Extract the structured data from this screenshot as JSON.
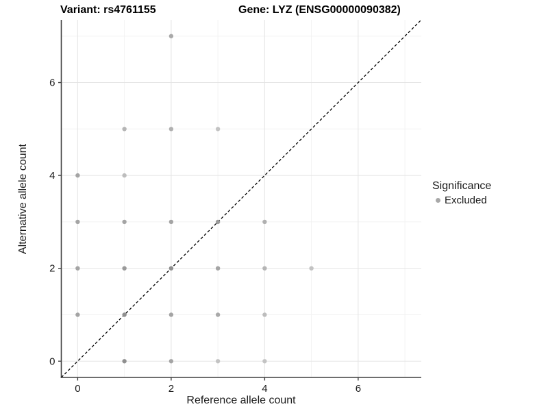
{
  "title": {
    "variant": "Variant: rs4761155",
    "gene": "Gene: LYZ (ENSG00000090382)"
  },
  "legend": {
    "title": "Significance",
    "items": [
      {
        "label": "Excluded",
        "color": "#a8a8a8"
      }
    ]
  },
  "colors": {
    "background": "#ffffff",
    "grid_major": "#e4e4e4",
    "grid_minor": "#f2f2f2",
    "axis": "#3f3f3f",
    "tick_text": "#1a1a1a",
    "identity_line": "#000000",
    "point_base": "#a4a4a4"
  },
  "chart_data": {
    "type": "scatter",
    "title": "Variant: rs4761155  Gene: LYZ (ENSG00000090382)",
    "xlabel": "Reference allele count",
    "ylabel": "Alternative allele count",
    "xlim": [
      -0.35,
      7.35
    ],
    "ylim": [
      -0.35,
      7.35
    ],
    "x_ticks": [
      0,
      2,
      4,
      6
    ],
    "y_ticks": [
      0,
      2,
      4,
      6
    ],
    "x_minor": [
      1,
      3,
      5,
      7
    ],
    "y_minor": [
      1,
      3,
      5,
      7
    ],
    "grid": true,
    "legend_position": "right",
    "identity_line": {
      "equation": "y = x",
      "style": "dashed",
      "color": "#000000"
    },
    "series": [
      {
        "name": "Excluded",
        "marker": "circle",
        "points": [
          {
            "x": 1,
            "y": 0,
            "color": "#8f8f8f"
          },
          {
            "x": 2,
            "y": 0,
            "color": "#a4a4a4"
          },
          {
            "x": 3,
            "y": 0,
            "color": "#c3c3c3"
          },
          {
            "x": 4,
            "y": 0,
            "color": "#c3c3c3"
          },
          {
            "x": 0,
            "y": 1,
            "color": "#a4a4a4"
          },
          {
            "x": 1,
            "y": 1,
            "color": "#8f8f8f"
          },
          {
            "x": 2,
            "y": 1,
            "color": "#a4a4a4"
          },
          {
            "x": 3,
            "y": 1,
            "color": "#a9a9a9"
          },
          {
            "x": 4,
            "y": 1,
            "color": "#bdbdbd"
          },
          {
            "x": 0,
            "y": 2,
            "color": "#a4a4a4"
          },
          {
            "x": 1,
            "y": 2,
            "color": "#9a9a9a"
          },
          {
            "x": 2,
            "y": 2,
            "color": "#8f8f8f"
          },
          {
            "x": 3,
            "y": 2,
            "color": "#a4a4a4"
          },
          {
            "x": 4,
            "y": 2,
            "color": "#b5b5b5"
          },
          {
            "x": 5,
            "y": 2,
            "color": "#c3c3c3"
          },
          {
            "x": 0,
            "y": 3,
            "color": "#a4a4a4"
          },
          {
            "x": 1,
            "y": 3,
            "color": "#a4a4a4"
          },
          {
            "x": 2,
            "y": 3,
            "color": "#a4a4a4"
          },
          {
            "x": 3,
            "y": 3,
            "color": "#9a9a9a"
          },
          {
            "x": 4,
            "y": 3,
            "color": "#b0b0b0"
          },
          {
            "x": 0,
            "y": 4,
            "color": "#a4a4a4"
          },
          {
            "x": 1,
            "y": 4,
            "color": "#bdbdbd"
          },
          {
            "x": 1,
            "y": 5,
            "color": "#b5b5b5"
          },
          {
            "x": 2,
            "y": 5,
            "color": "#b0b0b0"
          },
          {
            "x": 3,
            "y": 5,
            "color": "#c3c3c3"
          },
          {
            "x": 2,
            "y": 7,
            "color": "#a9a9a9"
          }
        ]
      }
    ]
  }
}
